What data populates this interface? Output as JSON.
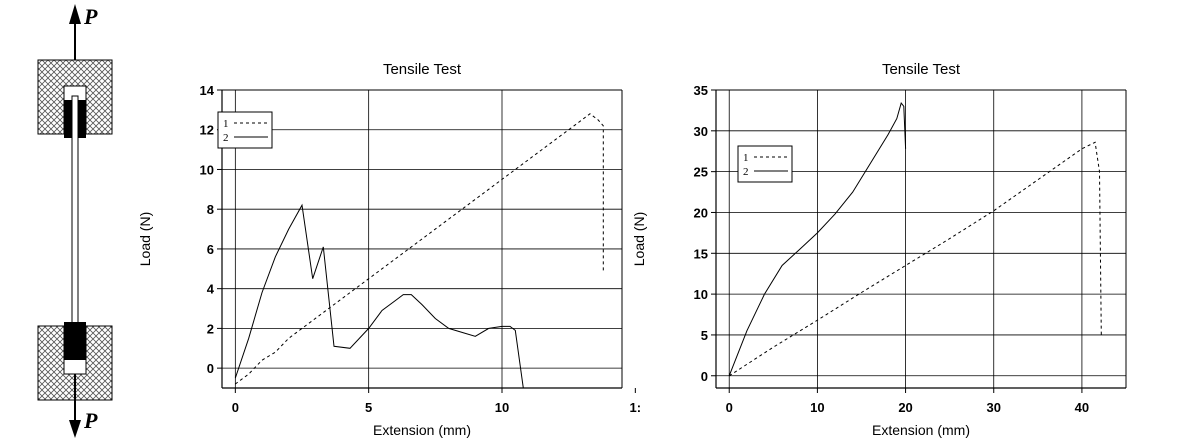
{
  "specimen": {
    "load_label_top": "P",
    "load_label_bottom": "P"
  },
  "chart_data": [
    {
      "type": "line",
      "title": "Tensile Test",
      "xlabel": "Extension (mm)",
      "ylabel": "Load (N)",
      "xlim": [
        -0.5,
        14.5
      ],
      "ylim": [
        -1,
        14
      ],
      "xticks": [
        0,
        5,
        10,
        15
      ],
      "xtick_labels": [
        "0",
        "5",
        "10",
        "1:"
      ],
      "yticks": [
        0,
        2,
        4,
        6,
        8,
        10,
        12,
        14
      ],
      "grid": true,
      "legend": {
        "position": "top-left",
        "entries": [
          "1",
          "2"
        ]
      },
      "series": [
        {
          "name": "1",
          "style": "dashed",
          "x": [
            0,
            0.5,
            1,
            1.5,
            2,
            3,
            4,
            5,
            6,
            7,
            8,
            9,
            10,
            11,
            12,
            12.8,
            13.3,
            13.6,
            13.8,
            13.8
          ],
          "y": [
            -0.8,
            -0.3,
            0.4,
            0.8,
            1.5,
            2.5,
            3.5,
            4.5,
            5.5,
            6.5,
            7.5,
            8.5,
            9.5,
            10.5,
            11.5,
            12.3,
            12.8,
            12.5,
            12.2,
            4.8
          ]
        },
        {
          "name": "2",
          "style": "solid",
          "x": [
            0,
            0.5,
            1,
            1.5,
            2,
            2.5,
            2.9,
            3.3,
            3.7,
            4.3,
            5.0,
            5.5,
            6.0,
            6.3,
            6.6,
            7.0,
            7.5,
            8.0,
            8.5,
            9.0,
            9.5,
            10.0,
            10.3,
            10.5,
            10.8
          ],
          "y": [
            -0.5,
            1.5,
            3.8,
            5.6,
            7.0,
            8.2,
            4.5,
            6.1,
            1.1,
            1.0,
            2.0,
            2.9,
            3.4,
            3.7,
            3.7,
            3.2,
            2.5,
            2.0,
            1.8,
            1.6,
            2.0,
            2.1,
            2.1,
            1.9,
            -1.0
          ]
        }
      ]
    },
    {
      "type": "line",
      "title": "Tensile Test",
      "xlabel": "Extension (mm)",
      "ylabel": "Load (N)",
      "xlim": [
        -1.5,
        45
      ],
      "ylim": [
        -1.5,
        35
      ],
      "xticks": [
        0,
        10,
        20,
        30,
        40
      ],
      "xtick_labels": [
        "0",
        "10",
        "20",
        "30",
        "40"
      ],
      "yticks": [
        0,
        5,
        10,
        15,
        20,
        25,
        30,
        35
      ],
      "grid": true,
      "legend": {
        "position": "middle-left",
        "entries": [
          "1",
          "2"
        ]
      },
      "series": [
        {
          "name": "1",
          "style": "dashed",
          "x": [
            0,
            5,
            10,
            15,
            20,
            25,
            30,
            35,
            40,
            41.5,
            42,
            42.2
          ],
          "y": [
            0,
            3.5,
            6.8,
            10.2,
            13.5,
            16.8,
            20.2,
            24.0,
            27.8,
            28.6,
            25,
            5
          ]
        },
        {
          "name": "2",
          "style": "solid",
          "x": [
            0,
            2,
            4,
            6,
            8,
            10,
            12,
            14,
            16,
            18,
            19,
            19.5,
            19.8,
            20
          ],
          "y": [
            0,
            5.5,
            10,
            13.5,
            15.5,
            17.5,
            19.8,
            22.5,
            26.0,
            29.5,
            31.5,
            33.4,
            33.0,
            27.8
          ]
        }
      ]
    }
  ]
}
